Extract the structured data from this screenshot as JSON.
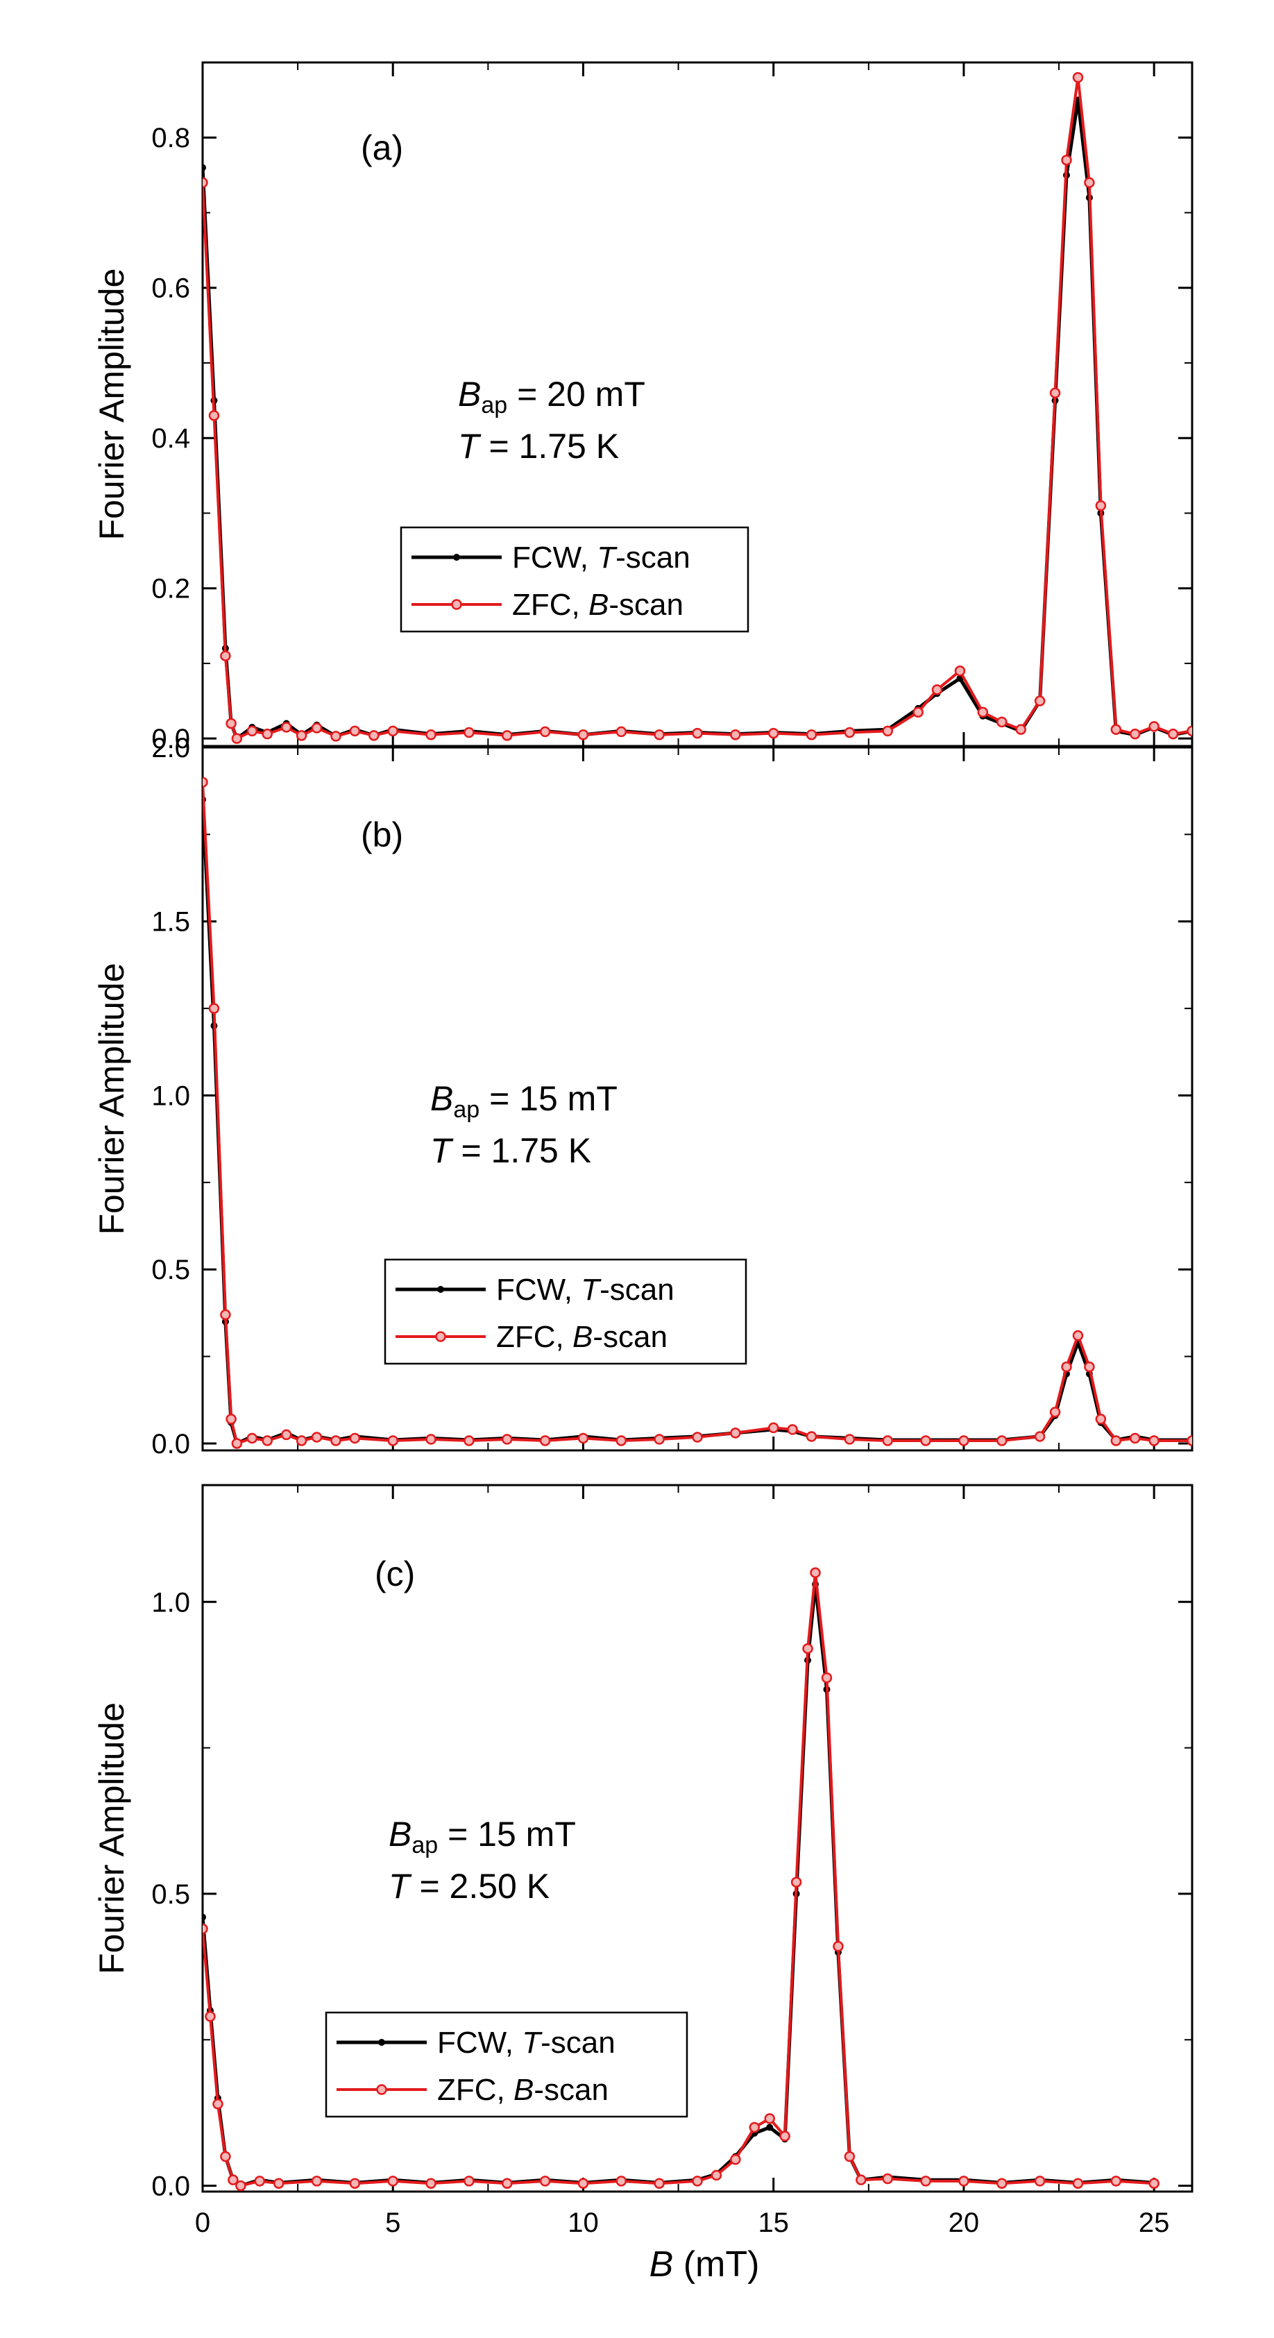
{
  "figure": {
    "xlabel_var": "B",
    "xlabel_unit": " (mT)"
  },
  "x_axis": {
    "range": [
      0,
      26
    ],
    "ticks": [
      0,
      5,
      10,
      15,
      20,
      25
    ],
    "tick_labels": [
      "0",
      "5",
      "10",
      "15",
      "20",
      "25"
    ]
  },
  "colors": {
    "fcw": "#000000",
    "zfc": "#e31a1c",
    "zfc_fill": "#f4b6b6"
  },
  "chart_data": [
    {
      "type": "line",
      "panel_label": "(a)",
      "ylabel": "Fourier Amplitude",
      "ylim": [
        -0.01,
        0.9
      ],
      "y_ticks": [
        0.0,
        0.2,
        0.4,
        0.6,
        0.8
      ],
      "y_tick_labels": [
        "0.0",
        "0.2",
        "0.4",
        "0.6",
        "0.8"
      ],
      "annotation": {
        "b_sym": "B",
        "b_sub": "ap",
        "b_val": " = 20 mT",
        "t_sym": "T",
        "t_val": " = 1.75 K"
      },
      "legend": [
        {
          "text_a": "FCW, ",
          "text_i": "T",
          "text_b": "-scan"
        },
        {
          "text_a": "ZFC, ",
          "text_i": "B",
          "text_b": "-scan"
        }
      ],
      "series": [
        {
          "name": "FCW, T-scan",
          "x": [
            0,
            0.3,
            0.6,
            0.75,
            0.9,
            1.3,
            1.7,
            2.2,
            2.6,
            3.0,
            3.5,
            4.0,
            4.5,
            5.0,
            6.0,
            7.0,
            8.0,
            9.0,
            10.0,
            11.0,
            12.0,
            13.0,
            14.0,
            15.0,
            16.0,
            17.0,
            18.0,
            18.8,
            19.3,
            19.9,
            20.5,
            21.0,
            21.5,
            22.0,
            22.4,
            22.7,
            23.0,
            23.3,
            23.6,
            24.0,
            24.5,
            25.0,
            25.5,
            26.0
          ],
          "y": [
            0.76,
            0.45,
            0.12,
            0.02,
            0.0,
            0.015,
            0.008,
            0.02,
            0.005,
            0.018,
            0.003,
            0.012,
            0.004,
            0.012,
            0.006,
            0.01,
            0.005,
            0.01,
            0.005,
            0.01,
            0.006,
            0.008,
            0.006,
            0.008,
            0.006,
            0.01,
            0.012,
            0.04,
            0.06,
            0.08,
            0.03,
            0.02,
            0.01,
            0.05,
            0.45,
            0.75,
            0.85,
            0.72,
            0.3,
            0.01,
            0.005,
            0.015,
            0.005,
            0.01
          ]
        },
        {
          "name": "ZFC, B-scan",
          "x": [
            0,
            0.3,
            0.6,
            0.75,
            0.9,
            1.3,
            1.7,
            2.2,
            2.6,
            3.0,
            3.5,
            4.0,
            4.5,
            5.0,
            6.0,
            7.0,
            8.0,
            9.0,
            10.0,
            11.0,
            12.0,
            13.0,
            14.0,
            15.0,
            16.0,
            17.0,
            18.0,
            18.8,
            19.3,
            19.9,
            20.5,
            21.0,
            21.5,
            22.0,
            22.4,
            22.7,
            23.0,
            23.3,
            23.6,
            24.0,
            24.5,
            25.0,
            25.5,
            26.0
          ],
          "y": [
            0.74,
            0.43,
            0.11,
            0.02,
            0.0,
            0.01,
            0.006,
            0.015,
            0.004,
            0.014,
            0.003,
            0.01,
            0.004,
            0.01,
            0.005,
            0.008,
            0.004,
            0.009,
            0.005,
            0.009,
            0.005,
            0.007,
            0.005,
            0.007,
            0.005,
            0.008,
            0.01,
            0.035,
            0.065,
            0.09,
            0.035,
            0.022,
            0.012,
            0.05,
            0.46,
            0.77,
            0.88,
            0.74,
            0.31,
            0.012,
            0.006,
            0.016,
            0.006,
            0.01
          ]
        }
      ]
    },
    {
      "type": "line",
      "panel_label": "(b)",
      "ylabel": "Fourier Amplitude",
      "ylim": [
        -0.02,
        2.0
      ],
      "y_ticks": [
        0.0,
        0.5,
        1.0,
        1.5,
        2.0
      ],
      "y_tick_labels": [
        "0.0",
        "0.5",
        "1.0",
        "1.5",
        "2.0"
      ],
      "annotation": {
        "b_sym": "B",
        "b_sub": "ap",
        "b_val": " = 15 mT",
        "t_sym": "T",
        "t_val": " = 1.75 K"
      },
      "legend": [
        {
          "text_a": "FCW, ",
          "text_i": "T",
          "text_b": "-scan"
        },
        {
          "text_a": "ZFC, ",
          "text_i": "B",
          "text_b": "-scan"
        }
      ],
      "series": [
        {
          "name": "FCW, T-scan",
          "x": [
            0,
            0.3,
            0.6,
            0.75,
            0.9,
            1.3,
            1.7,
            2.2,
            2.6,
            3.0,
            3.5,
            4.0,
            5.0,
            6.0,
            7.0,
            8.0,
            9.0,
            10.0,
            11.0,
            12.0,
            13.0,
            14.0,
            15.0,
            15.5,
            16.0,
            17.0,
            18.0,
            19.0,
            20.0,
            21.0,
            22.0,
            22.4,
            22.7,
            23.0,
            23.3,
            23.6,
            24.0,
            24.5,
            25.0,
            26.0
          ],
          "y": [
            1.85,
            1.2,
            0.35,
            0.06,
            0.0,
            0.02,
            0.01,
            0.03,
            0.01,
            0.02,
            0.01,
            0.02,
            0.01,
            0.015,
            0.01,
            0.015,
            0.01,
            0.02,
            0.01,
            0.015,
            0.02,
            0.03,
            0.04,
            0.035,
            0.02,
            0.015,
            0.01,
            0.01,
            0.01,
            0.01,
            0.02,
            0.08,
            0.2,
            0.29,
            0.2,
            0.06,
            0.01,
            0.02,
            0.01,
            0.01
          ]
        },
        {
          "name": "ZFC, B-scan",
          "x": [
            0,
            0.3,
            0.6,
            0.75,
            0.9,
            1.3,
            1.7,
            2.2,
            2.6,
            3.0,
            3.5,
            4.0,
            5.0,
            6.0,
            7.0,
            8.0,
            9.0,
            10.0,
            11.0,
            12.0,
            13.0,
            14.0,
            15.0,
            15.5,
            16.0,
            17.0,
            18.0,
            19.0,
            20.0,
            21.0,
            22.0,
            22.4,
            22.7,
            23.0,
            23.3,
            23.6,
            24.0,
            24.5,
            25.0,
            26.0
          ],
          "y": [
            1.9,
            1.25,
            0.37,
            0.07,
            0.0,
            0.015,
            0.008,
            0.025,
            0.008,
            0.018,
            0.008,
            0.015,
            0.008,
            0.012,
            0.008,
            0.012,
            0.008,
            0.015,
            0.008,
            0.012,
            0.018,
            0.03,
            0.045,
            0.04,
            0.02,
            0.012,
            0.008,
            0.008,
            0.008,
            0.008,
            0.02,
            0.09,
            0.22,
            0.31,
            0.22,
            0.07,
            0.008,
            0.015,
            0.008,
            0.008
          ]
        }
      ]
    },
    {
      "type": "line",
      "panel_label": "(c)",
      "ylabel": "Fourier Amplitude",
      "ylim": [
        -0.01,
        1.2
      ],
      "y_ticks": [
        0.0,
        0.5,
        1.0
      ],
      "y_tick_labels": [
        "0.0",
        "0.5",
        "1.0"
      ],
      "annotation": {
        "b_sym": "B",
        "b_sub": "ap",
        "b_val": " = 15 mT",
        "t_sym": "T",
        "t_val": " = 2.50 K"
      },
      "legend": [
        {
          "text_a": "FCW, ",
          "text_i": "T",
          "text_b": "-scan"
        },
        {
          "text_a": "ZFC, ",
          "text_i": "B",
          "text_b": "-scan"
        }
      ],
      "series": [
        {
          "name": "FCW, T-scan",
          "x": [
            0,
            0.2,
            0.4,
            0.6,
            0.8,
            1.0,
            1.5,
            2.0,
            3.0,
            4.0,
            5.0,
            6.0,
            7.0,
            8.0,
            9.0,
            10.0,
            11.0,
            12.0,
            13.0,
            13.5,
            14.0,
            14.5,
            14.9,
            15.3,
            15.6,
            15.9,
            16.1,
            16.4,
            16.7,
            17.0,
            17.3,
            18.0,
            19.0,
            20.0,
            21.0,
            22.0,
            23.0,
            24.0,
            25.0
          ],
          "y": [
            0.46,
            0.3,
            0.15,
            0.05,
            0.01,
            0.0,
            0.01,
            0.005,
            0.01,
            0.005,
            0.01,
            0.005,
            0.01,
            0.005,
            0.01,
            0.005,
            0.01,
            0.005,
            0.01,
            0.02,
            0.05,
            0.09,
            0.1,
            0.08,
            0.5,
            0.9,
            1.03,
            0.85,
            0.4,
            0.05,
            0.01,
            0.015,
            0.01,
            0.01,
            0.005,
            0.01,
            0.005,
            0.01,
            0.005
          ]
        },
        {
          "name": "ZFC, B-scan",
          "x": [
            0,
            0.2,
            0.4,
            0.6,
            0.8,
            1.0,
            1.5,
            2.0,
            3.0,
            4.0,
            5.0,
            6.0,
            7.0,
            8.0,
            9.0,
            10.0,
            11.0,
            12.0,
            13.0,
            13.5,
            14.0,
            14.5,
            14.9,
            15.3,
            15.6,
            15.9,
            16.1,
            16.4,
            16.7,
            17.0,
            17.3,
            18.0,
            19.0,
            20.0,
            21.0,
            22.0,
            23.0,
            24.0,
            25.0
          ],
          "y": [
            0.44,
            0.29,
            0.14,
            0.05,
            0.01,
            0.0,
            0.008,
            0.004,
            0.008,
            0.004,
            0.008,
            0.004,
            0.008,
            0.004,
            0.008,
            0.004,
            0.008,
            0.004,
            0.008,
            0.018,
            0.045,
            0.1,
            0.115,
            0.085,
            0.52,
            0.92,
            1.05,
            0.87,
            0.41,
            0.05,
            0.01,
            0.012,
            0.008,
            0.008,
            0.004,
            0.008,
            0.004,
            0.008,
            0.004
          ]
        }
      ]
    }
  ]
}
